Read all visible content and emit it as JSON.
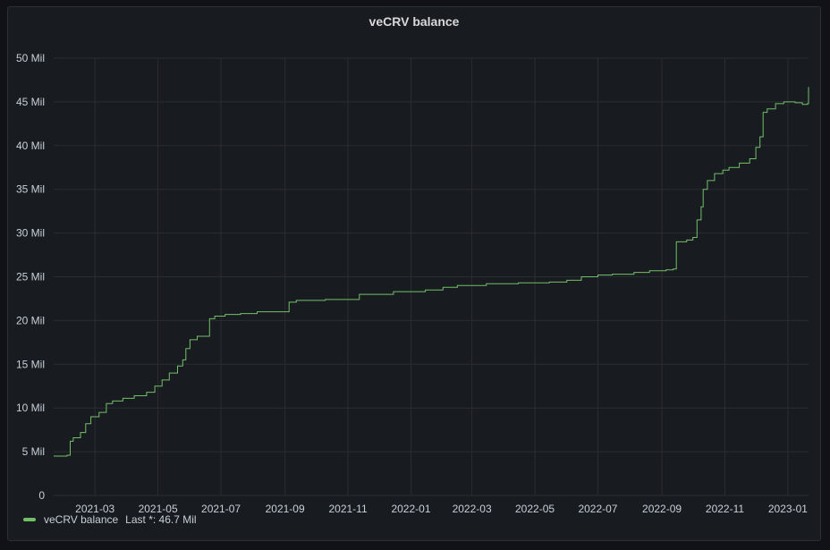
{
  "panel": {
    "title": "veCRV balance"
  },
  "colors": {
    "background": "#181b1f",
    "grid": "#2a2d33",
    "series": "#73bf69",
    "text": "#c7d0d9"
  },
  "legend": {
    "name": "veCRV balance",
    "stat_label": "Last *:",
    "stat_value": "46.7 Mil"
  },
  "chart_data": {
    "type": "line",
    "title": "veCRV balance",
    "xlabel": "",
    "ylabel": "",
    "ylim": [
      0,
      50000000
    ],
    "y_ticks": [
      {
        "value": 0,
        "label": "0"
      },
      {
        "value": 5000000,
        "label": "5 Mil"
      },
      {
        "value": 10000000,
        "label": "10 Mil"
      },
      {
        "value": 15000000,
        "label": "15 Mil"
      },
      {
        "value": 20000000,
        "label": "20 Mil"
      },
      {
        "value": 25000000,
        "label": "25 Mil"
      },
      {
        "value": 30000000,
        "label": "30 Mil"
      },
      {
        "value": 35000000,
        "label": "35 Mil"
      },
      {
        "value": 40000000,
        "label": "40 Mil"
      },
      {
        "value": 45000000,
        "label": "45 Mil"
      },
      {
        "value": 50000000,
        "label": "50 Mil"
      }
    ],
    "xlim": [
      "2021-01-20",
      "2023-01-21"
    ],
    "x_ticks": [
      "2021-03",
      "2021-05",
      "2021-07",
      "2021-09",
      "2021-11",
      "2022-01",
      "2022-03",
      "2022-05",
      "2022-07",
      "2022-09",
      "2022-11",
      "2023-01"
    ],
    "grid": true,
    "legend_position": "bottom-left",
    "series": [
      {
        "name": "veCRV balance",
        "color": "#73bf69",
        "step": true,
        "points": [
          [
            "2021-01-20",
            4500000
          ],
          [
            "2021-02-02",
            4600000
          ],
          [
            "2021-02-05",
            6200000
          ],
          [
            "2021-02-08",
            6600000
          ],
          [
            "2021-02-15",
            7200000
          ],
          [
            "2021-02-20",
            8200000
          ],
          [
            "2021-02-25",
            9000000
          ],
          [
            "2021-03-05",
            9500000
          ],
          [
            "2021-03-12",
            10500000
          ],
          [
            "2021-03-18",
            10800000
          ],
          [
            "2021-03-28",
            11100000
          ],
          [
            "2021-04-08",
            11400000
          ],
          [
            "2021-04-20",
            11800000
          ],
          [
            "2021-04-28",
            12500000
          ],
          [
            "2021-05-05",
            13200000
          ],
          [
            "2021-05-12",
            14000000
          ],
          [
            "2021-05-20",
            14800000
          ],
          [
            "2021-05-25",
            15500000
          ],
          [
            "2021-05-28",
            16800000
          ],
          [
            "2021-06-01",
            17800000
          ],
          [
            "2021-06-08",
            18200000
          ],
          [
            "2021-06-20",
            20200000
          ],
          [
            "2021-06-25",
            20500000
          ],
          [
            "2021-07-05",
            20700000
          ],
          [
            "2021-07-20",
            20800000
          ],
          [
            "2021-08-05",
            21000000
          ],
          [
            "2021-09-01",
            21000000
          ],
          [
            "2021-09-05",
            22100000
          ],
          [
            "2021-09-12",
            22300000
          ],
          [
            "2021-10-10",
            22400000
          ],
          [
            "2021-11-08",
            22400000
          ],
          [
            "2021-11-12",
            23000000
          ],
          [
            "2021-12-01",
            23000000
          ],
          [
            "2021-12-15",
            23300000
          ],
          [
            "2022-01-15",
            23500000
          ],
          [
            "2022-02-01",
            23800000
          ],
          [
            "2022-02-15",
            24000000
          ],
          [
            "2022-03-15",
            24200000
          ],
          [
            "2022-04-15",
            24300000
          ],
          [
            "2022-05-15",
            24400000
          ],
          [
            "2022-06-01",
            24600000
          ],
          [
            "2022-06-15",
            25000000
          ],
          [
            "2022-07-01",
            25200000
          ],
          [
            "2022-07-15",
            25300000
          ],
          [
            "2022-08-05",
            25500000
          ],
          [
            "2022-08-20",
            25700000
          ],
          [
            "2022-09-05",
            25800000
          ],
          [
            "2022-09-12",
            25900000
          ],
          [
            "2022-09-15",
            29000000
          ],
          [
            "2022-09-25",
            29200000
          ],
          [
            "2022-10-01",
            29500000
          ],
          [
            "2022-10-05",
            31500000
          ],
          [
            "2022-10-09",
            33000000
          ],
          [
            "2022-10-11",
            35000000
          ],
          [
            "2022-10-15",
            36000000
          ],
          [
            "2022-10-22",
            36800000
          ],
          [
            "2022-10-30",
            37200000
          ],
          [
            "2022-11-05",
            37500000
          ],
          [
            "2022-11-15",
            38000000
          ],
          [
            "2022-11-25",
            38500000
          ],
          [
            "2022-12-01",
            39800000
          ],
          [
            "2022-12-05",
            41000000
          ],
          [
            "2022-12-08",
            43800000
          ],
          [
            "2022-12-12",
            44200000
          ],
          [
            "2022-12-20",
            44800000
          ],
          [
            "2022-12-28",
            45000000
          ],
          [
            "2023-01-08",
            44900000
          ],
          [
            "2023-01-15",
            44700000
          ],
          [
            "2023-01-20",
            44800000
          ],
          [
            "2023-01-21",
            46700000
          ]
        ]
      }
    ]
  }
}
